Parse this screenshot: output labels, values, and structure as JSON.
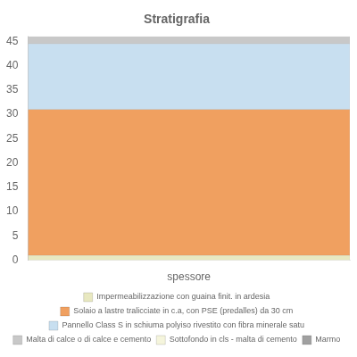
{
  "chart_data": {
    "type": "bar",
    "title": "Stratigrafia",
    "xlabel": "spessore",
    "categories": [
      null
    ],
    "stacked": true,
    "series": [
      {
        "name": "Impermeabilizzazione con guaina finit. in ardesia",
        "color": "#e8e8c0",
        "values": [
          1.0
        ]
      },
      {
        "name": "Solaio a lastre tralicciate in c.a, con PSE (predalles) da 30 cm",
        "color": "#f0a060",
        "values": [
          30.0
        ]
      },
      {
        "name": "Pannello Class S in schiuma polyiso rivestito con fibra minerale satu",
        "color": "#c8dff0",
        "values": [
          13.5
        ]
      },
      {
        "name": "Malta di calce o di calce e cemento",
        "color": "#c8c8c8",
        "values": [
          1.5
        ]
      },
      {
        "name": "Sottofondo in cls - malta di cemento",
        "color": "#f5f5dc",
        "values": [
          null
        ]
      },
      {
        "name": "Marmo",
        "color": "#a0a0a0",
        "values": [
          null
        ]
      }
    ],
    "ylim": [
      0,
      46
    ],
    "yticks": [
      0,
      5,
      10,
      15,
      20,
      25,
      30,
      35,
      40,
      45
    ],
    "grid": false,
    "tick_labels": "y"
  }
}
